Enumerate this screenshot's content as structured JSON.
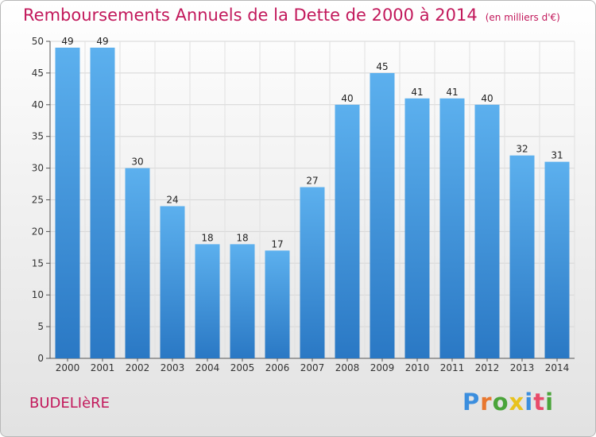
{
  "header": {
    "title": "Remboursements Annuels de la Dette de 2000 à 2014",
    "unit": "(en milliers d'€)"
  },
  "footer": {
    "commune": "BUDELIèRE",
    "logo": [
      "P",
      "r",
      "o",
      "x",
      "i",
      "t",
      "i"
    ],
    "logo_colors": [
      "#3b8ede",
      "#e8772e",
      "#4aa43a",
      "#e8c21e",
      "#3b8ede",
      "#e84b6a",
      "#4aa43a"
    ]
  },
  "chart_data": {
    "type": "bar",
    "title": "Remboursements Annuels de la Dette de 2000 à 2014",
    "xlabel": "",
    "ylabel": "",
    "ylim": [
      0,
      50
    ],
    "yticks": [
      0,
      5,
      10,
      15,
      20,
      25,
      30,
      35,
      40,
      45,
      50
    ],
    "categories": [
      "2000",
      "2001",
      "2002",
      "2003",
      "2004",
      "2005",
      "2006",
      "2007",
      "2008",
      "2009",
      "2010",
      "2011",
      "2012",
      "2013",
      "2014"
    ],
    "values": [
      49,
      49,
      30,
      24,
      18,
      18,
      17,
      27,
      40,
      45,
      41,
      41,
      40,
      32,
      31
    ],
    "grid": "horizontal",
    "bar_color": "#3b8fd8"
  }
}
